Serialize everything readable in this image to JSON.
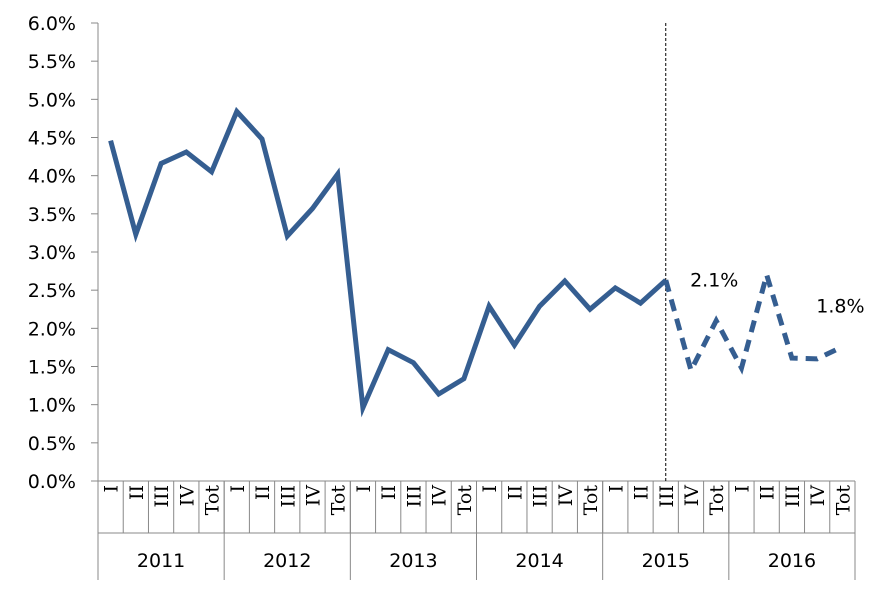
{
  "chart_data": {
    "type": "line",
    "title": "",
    "xlabel": "",
    "ylabel": "",
    "ylim": [
      0,
      0.06
    ],
    "y_tick_labels": [
      "0.0%",
      "0.5%",
      "1.0%",
      "1.5%",
      "2.0%",
      "2.5%",
      "3.0%",
      "3.5%",
      "4.0%",
      "4.5%",
      "5.0%",
      "5.5%",
      "6.0%"
    ],
    "grid": false,
    "legend": "none",
    "series_color": "#355E91",
    "groups": [
      {
        "year": "2011",
        "categories": [
          "I",
          "II",
          "III",
          "IV",
          "Tot"
        ]
      },
      {
        "year": "2012",
        "categories": [
          "I",
          "II",
          "III",
          "IV",
          "Tot"
        ]
      },
      {
        "year": "2013",
        "categories": [
          "I",
          "II",
          "III",
          "IV",
          "Tot"
        ]
      },
      {
        "year": "2014",
        "categories": [
          "I",
          "II",
          "III",
          "IV",
          "Tot"
        ]
      },
      {
        "year": "2015",
        "categories": [
          "I",
          "II",
          "III",
          "IV",
          "Tot"
        ]
      },
      {
        "year": "2016",
        "categories": [
          "I",
          "II",
          "III",
          "IV",
          "Tot"
        ]
      }
    ],
    "values": [
      0.0446,
      0.0323,
      0.0416,
      0.0431,
      0.0405,
      0.0484,
      0.0448,
      0.0321,
      0.0357,
      0.0402,
      0.0096,
      0.0172,
      0.0155,
      0.0114,
      0.0134,
      0.0229,
      0.0178,
      0.0229,
      0.0262,
      0.0225,
      0.0253,
      0.0233,
      0.0263,
      0.0145,
      0.021,
      0.0148,
      0.027,
      0.0161,
      0.016,
      0.0176
    ],
    "forecast_start_index": 22,
    "divider_after_index": 22,
    "annotations": [
      {
        "text": "2.1%",
        "index": 24
      },
      {
        "text": "1.8%",
        "index": 29
      }
    ]
  }
}
